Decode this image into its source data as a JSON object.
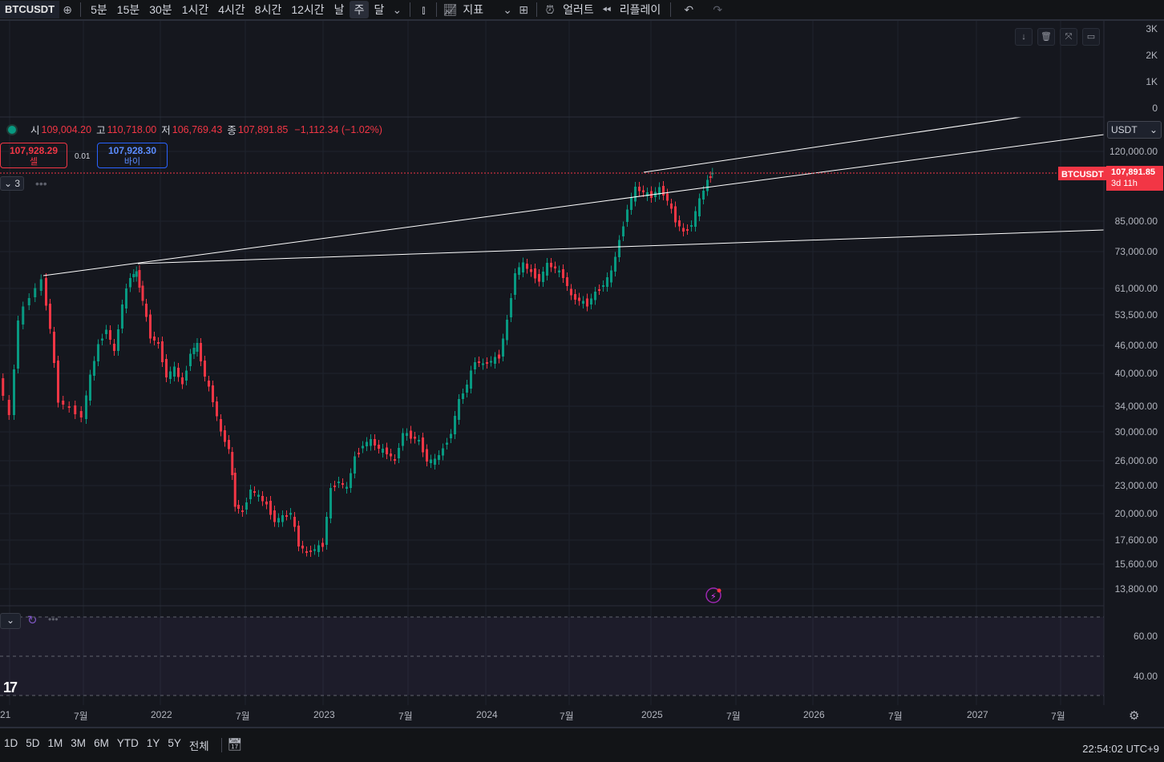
{
  "toolbar": {
    "symbol": "BTCUSDT",
    "intervals": [
      "5분",
      "15분",
      "30분",
      "1시간",
      "4시간",
      "8시간",
      "12시간",
      "날",
      "주",
      "달"
    ],
    "active_interval": "주",
    "indicators_label": "지표",
    "alert_label": "얼러트",
    "replay_label": "리플레이"
  },
  "legend": {
    "open_label": "시",
    "open": "109,004.20",
    "high_label": "고",
    "high": "110,718.00",
    "low_label": "저",
    "low": "106,769.43",
    "close_label": "종",
    "close": "107,891.85",
    "change": "−1,112.34 (−1.02%)"
  },
  "trade": {
    "sell_price": "107,928.29",
    "sell_label": "셀",
    "spread": "0.01",
    "buy_price": "107,928.30",
    "buy_label": "바이",
    "indicator_count": "3"
  },
  "price_scale": {
    "currency": "USDT",
    "volume_labels": [
      "3K",
      "2K",
      "1K",
      "0"
    ],
    "price_labels": [
      "120,000.00",
      "85,000.00",
      "73,000.00",
      "61,000.00",
      "53,500.00",
      "46,000.00",
      "40,000.00",
      "34,000.00",
      "30,000.00",
      "26,000.00",
      "23,000.00",
      "20,000.00",
      "17,600.00",
      "15,600.00",
      "13,800.00"
    ],
    "last_price_symbol": "BTCUSDT",
    "last_price": "107,891.85",
    "countdown": "3d 11h",
    "osc_labels": [
      "60.00",
      "40.00"
    ]
  },
  "time_scale": {
    "labels": [
      "21",
      "7월",
      "2022",
      "7월",
      "2023",
      "7월",
      "2024",
      "7월",
      "2025",
      "7월",
      "2026",
      "7월",
      "2027",
      "7월"
    ]
  },
  "bottom": {
    "ranges": [
      "1D",
      "5D",
      "1M",
      "3M",
      "6M",
      "YTD",
      "1Y",
      "5Y",
      "전체"
    ],
    "clock": "22:54:02 UTC+9"
  },
  "colors": {
    "up": "#089981",
    "down": "#f23645",
    "accent": "#2962ff",
    "background": "#15171e"
  }
}
